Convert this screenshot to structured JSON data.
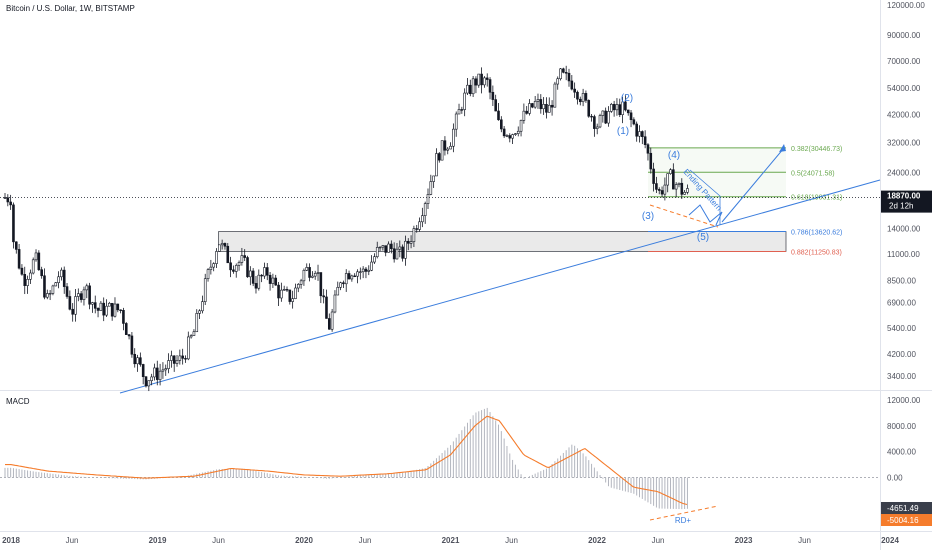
{
  "header": {
    "symbol_title": "Bitcoin / U.S. Dollar, 1W, BITSTAMP"
  },
  "colors": {
    "candle": "#131722",
    "trendline": "#3b7ddd",
    "fib_green": "#6aa84f",
    "fib_blue": "#3b7ddd",
    "fib_red": "#e06050",
    "macd_signal": "#f57c2c",
    "macd_hist": "#b2b5be",
    "divergence": "#f57c2c",
    "price_tag": "#131722",
    "macd_tag_a": "#3a3f4b",
    "macd_tag_b": "#f57c2c",
    "zone_fill": "#d9d9d9"
  },
  "chart_data": [
    {
      "type": "candlestick",
      "title": "Bitcoin / U.S. Dollar, 1W, BITSTAMP",
      "y_scale": "log",
      "ylim": [
        2900,
        125000
      ],
      "y_ticks": [
        "120000.00",
        "90000.00",
        "70000.00",
        "54000.00",
        "42000.00",
        "32000.00",
        "24000.00",
        "18000.00",
        "14000.00",
        "11000.00",
        "8500.00",
        "6900.00",
        "5400.00",
        "4200.00",
        "3400.00"
      ],
      "x_ticks": [
        "2018",
        "Jun",
        "2019",
        "Jun",
        "2020",
        "Jun",
        "2021",
        "Jun",
        "2022",
        "Jun",
        "2023",
        "Jun",
        "2024"
      ],
      "price_path": [
        [
          "2018-01",
          13800
        ],
        [
          "2018-02",
          8500
        ],
        [
          "2018-03",
          10500
        ],
        [
          "2018-04",
          7000
        ],
        [
          "2018-05",
          9200
        ],
        [
          "2018-06",
          6300
        ],
        [
          "2018-07",
          8200
        ],
        [
          "2018-08",
          6400
        ],
        [
          "2018-09",
          6500
        ],
        [
          "2018-10",
          6400
        ],
        [
          "2018-11",
          4300
        ],
        [
          "2018-12",
          3300
        ],
        [
          "2019-01",
          3500
        ],
        [
          "2019-02",
          3800
        ],
        [
          "2019-03",
          4000
        ],
        [
          "2019-04",
          5200
        ],
        [
          "2019-05",
          8500
        ],
        [
          "2019-06",
          12500
        ],
        [
          "2019-07",
          10000
        ],
        [
          "2019-08",
          10200
        ],
        [
          "2019-09",
          8300
        ],
        [
          "2019-10",
          9200
        ],
        [
          "2019-11",
          7500
        ],
        [
          "2019-12",
          7200
        ],
        [
          "2020-01",
          9300
        ],
        [
          "2020-02",
          9800
        ],
        [
          "2020-03",
          5300
        ],
        [
          "2020-04",
          8700
        ],
        [
          "2020-05",
          9500
        ],
        [
          "2020-06",
          9200
        ],
        [
          "2020-07",
          11200
        ],
        [
          "2020-08",
          11700
        ],
        [
          "2020-09",
          10800
        ],
        [
          "2020-10",
          13800
        ],
        [
          "2020-11",
          19000
        ],
        [
          "2020-12",
          29000
        ],
        [
          "2021-01",
          33000
        ],
        [
          "2021-02",
          48000
        ],
        [
          "2021-03",
          58000
        ],
        [
          "2021-04",
          57000
        ],
        [
          "2021-05",
          37000
        ],
        [
          "2021-06",
          35000
        ],
        [
          "2021-07",
          41000
        ],
        [
          "2021-08",
          47000
        ],
        [
          "2021-09",
          43000
        ],
        [
          "2021-10",
          61000
        ],
        [
          "2021-11",
          57000
        ],
        [
          "2021-12",
          47000
        ],
        [
          "2022-01",
          38000
        ],
        [
          "2022-02",
          43000
        ],
        [
          "2022-03",
          45000
        ],
        [
          "2022-04",
          38000
        ],
        [
          "2022-05",
          31000
        ],
        [
          "2022-06",
          19500
        ],
        [
          "2022-07",
          23000
        ],
        [
          "2022-08",
          20000
        ],
        [
          "2022-09",
          19400
        ],
        [
          "2022-10",
          18870
        ]
      ],
      "current_price": "18870.00",
      "countdown": "2d 12h",
      "annotations": {
        "fib_levels": [
          {
            "label": "0.382(30446.73)",
            "value": 30446.73,
            "color": "#6aa84f"
          },
          {
            "label": "0.5(24071.58)",
            "value": 24071.58,
            "color": "#6aa84f"
          },
          {
            "label": "0.618(19031.31)",
            "value": 19031.31,
            "color": "#6aa84f"
          },
          {
            "label": "0.786(13620.62)",
            "value": 13620.62,
            "color": "#3b7ddd"
          },
          {
            "label": "0.882(11250.83)",
            "value": 11250.83,
            "color": "#e06050"
          }
        ],
        "waves": [
          "(1)",
          "(2)",
          "(3)",
          "(4)",
          "(5)"
        ],
        "pattern_label": "Ending Pattern"
      }
    },
    {
      "type": "bar",
      "title": "MACD",
      "ylim": [
        -6500,
        13000
      ],
      "y_ticks": [
        "12000.00",
        "8000.00",
        "4000.00",
        "0.00"
      ],
      "macd_values": [
        "-4651.49",
        "-5004.16"
      ],
      "divergence_label": "RD+",
      "hist_path": [
        [
          "2018-01",
          1500
        ],
        [
          "2018-03",
          900
        ],
        [
          "2018-06",
          200
        ],
        [
          "2018-09",
          -100
        ],
        [
          "2018-12",
          -300
        ],
        [
          "2019-03",
          100
        ],
        [
          "2019-06",
          1300
        ],
        [
          "2019-08",
          1400
        ],
        [
          "2019-11",
          300
        ],
        [
          "2020-01",
          100
        ],
        [
          "2020-03",
          -200
        ],
        [
          "2020-06",
          400
        ],
        [
          "2020-09",
          700
        ],
        [
          "2020-11",
          1500
        ],
        [
          "2021-01",
          5000
        ],
        [
          "2021-03",
          10000
        ],
        [
          "2021-04",
          10800
        ],
        [
          "2021-05",
          8000
        ],
        [
          "2021-06",
          3000
        ],
        [
          "2021-07",
          -200
        ],
        [
          "2021-09",
          1500
        ],
        [
          "2021-11",
          5200
        ],
        [
          "2021-12",
          3500
        ],
        [
          "2022-02",
          -1500
        ],
        [
          "2022-04",
          -2500
        ],
        [
          "2022-06",
          -4800
        ],
        [
          "2022-08",
          -4900
        ],
        [
          "2022-10",
          -4650
        ]
      ],
      "signal_path": [
        [
          "2018-01",
          2000
        ],
        [
          "2018-04",
          1000
        ],
        [
          "2018-08",
          400
        ],
        [
          "2018-12",
          -100
        ],
        [
          "2019-04",
          200
        ],
        [
          "2019-07",
          1400
        ],
        [
          "2019-10",
          1000
        ],
        [
          "2020-01",
          400
        ],
        [
          "2020-04",
          200
        ],
        [
          "2020-08",
          600
        ],
        [
          "2020-11",
          1200
        ],
        [
          "2021-01",
          3500
        ],
        [
          "2021-03",
          8000
        ],
        [
          "2021-04",
          9500
        ],
        [
          "2021-05",
          8800
        ],
        [
          "2021-07",
          3500
        ],
        [
          "2021-09",
          1500
        ],
        [
          "2021-11",
          3500
        ],
        [
          "2021-12",
          4500
        ],
        [
          "2022-02",
          1500
        ],
        [
          "2022-04",
          -1500
        ],
        [
          "2022-06",
          -2200
        ],
        [
          "2022-08",
          -4000
        ],
        [
          "2022-10",
          -5000
        ]
      ]
    }
  ]
}
